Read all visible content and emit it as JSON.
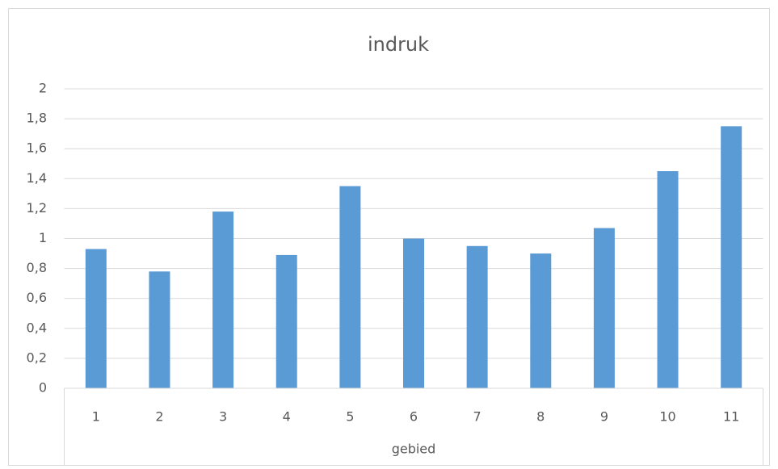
{
  "chart_data": {
    "type": "bar",
    "title": "indruk",
    "x_label": "gebied",
    "categories": [
      "1",
      "2",
      "3",
      "4",
      "5",
      "6",
      "7",
      "8",
      "9",
      "10",
      "11"
    ],
    "values": [
      0.93,
      0.78,
      1.18,
      0.89,
      1.35,
      1.0,
      0.95,
      0.9,
      1.07,
      1.45,
      1.75
    ],
    "color": "#5b9bd5",
    "ylim": [
      0,
      2
    ],
    "yticks": [
      0,
      {
        "value": 0.2,
        "label": "0,2"
      },
      {
        "value": 0.4,
        "label": "0,4"
      },
      {
        "value": 0.6,
        "label": "0,6"
      },
      {
        "value": 0.8,
        "label": "0,8"
      },
      1,
      {
        "value": 1.2,
        "label": "1,2"
      },
      {
        "value": 1.4,
        "label": "1,4"
      },
      {
        "value": 1.6,
        "label": "1,6"
      },
      {
        "value": 1.8,
        "label": "1,8"
      },
      2
    ],
    "grid": true
  }
}
